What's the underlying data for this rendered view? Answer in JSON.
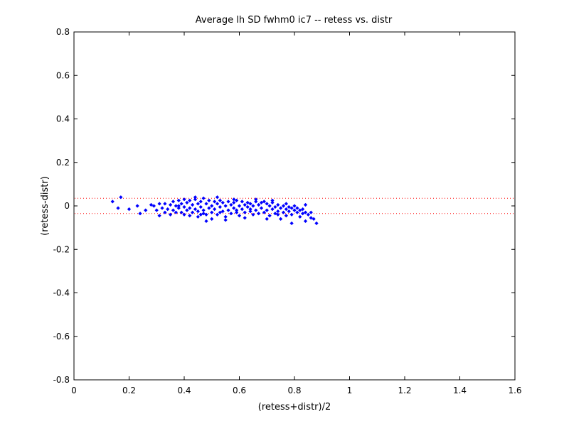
{
  "chart_data": {
    "type": "scatter",
    "title": "Average lh SD fwhm0 ic7 -- retess vs. distr",
    "xlabel": "(retess+distr)/2",
    "ylabel": "(retess-distr)",
    "xlim": [
      0,
      1.6
    ],
    "ylim": [
      -0.8,
      0.8
    ],
    "xticks": [
      0,
      0.2,
      0.4,
      0.6,
      0.8,
      1,
      1.2,
      1.4,
      1.6
    ],
    "xtick_labels": [
      "0",
      "0.2",
      "0.4",
      "0.6",
      "0.8",
      "1",
      "1.2",
      "1.4",
      "1.6"
    ],
    "yticks": [
      -0.8,
      -0.6,
      -0.4,
      -0.2,
      0,
      0.2,
      0.4,
      0.6,
      0.8
    ],
    "ytick_labels": [
      "-0.8",
      "-0.6",
      "-0.4",
      "-0.2",
      "0",
      "0.2",
      "0.4",
      "0.6",
      "0.8"
    ],
    "grid": false,
    "marker_color": "#0000ff",
    "reference_line_color": "#ff0000",
    "reference_lines": [
      0.035,
      -0.035
    ],
    "reference_line_style": "dotted",
    "series": [
      {
        "points": [
          [
            0.14,
            0.02
          ],
          [
            0.17,
            0.04
          ],
          [
            0.16,
            -0.01
          ],
          [
            0.2,
            -0.015
          ],
          [
            0.23,
            0.0
          ],
          [
            0.24,
            -0.035
          ],
          [
            0.26,
            -0.02
          ],
          [
            0.28,
            0.005
          ],
          [
            0.29,
            0.0
          ],
          [
            0.3,
            -0.02
          ],
          [
            0.31,
            0.01
          ],
          [
            0.31,
            -0.045
          ],
          [
            0.32,
            -0.01
          ],
          [
            0.33,
            0.01
          ],
          [
            0.33,
            -0.03
          ],
          [
            0.34,
            -0.015
          ],
          [
            0.35,
            0.005
          ],
          [
            0.35,
            -0.04
          ],
          [
            0.36,
            0.02
          ],
          [
            0.36,
            -0.02
          ],
          [
            0.37,
            0.0
          ],
          [
            0.37,
            -0.03
          ],
          [
            0.38,
            0.025
          ],
          [
            0.38,
            -0.01
          ],
          [
            0.39,
            0.01
          ],
          [
            0.39,
            -0.03
          ],
          [
            0.4,
            0.03
          ],
          [
            0.4,
            -0.005
          ],
          [
            0.4,
            -0.04
          ],
          [
            0.41,
            0.015
          ],
          [
            0.41,
            -0.02
          ],
          [
            0.42,
            0.025
          ],
          [
            0.42,
            -0.01
          ],
          [
            0.42,
            -0.045
          ],
          [
            0.43,
            0.005
          ],
          [
            0.43,
            -0.03
          ],
          [
            0.44,
            0.03
          ],
          [
            0.44,
            -0.015
          ],
          [
            0.45,
            0.01
          ],
          [
            0.45,
            -0.05
          ],
          [
            0.45,
            -0.025
          ],
          [
            0.46,
            0.02
          ],
          [
            0.46,
            -0.005
          ],
          [
            0.47,
            0.035
          ],
          [
            0.47,
            -0.035
          ],
          [
            0.47,
            -0.02
          ],
          [
            0.48,
            0.01
          ],
          [
            0.48,
            -0.04
          ],
          [
            0.49,
            0.025
          ],
          [
            0.49,
            -0.01
          ],
          [
            0.5,
            0.0
          ],
          [
            0.5,
            -0.03
          ],
          [
            0.5,
            -0.06
          ],
          [
            0.51,
            0.02
          ],
          [
            0.51,
            -0.015
          ],
          [
            0.52,
            0.01
          ],
          [
            0.52,
            -0.04
          ],
          [
            0.53,
            0.025
          ],
          [
            0.53,
            -0.005
          ],
          [
            0.54,
            -0.025
          ],
          [
            0.54,
            0.015
          ],
          [
            0.55,
            0.0
          ],
          [
            0.55,
            -0.05
          ],
          [
            0.56,
            0.02
          ],
          [
            0.56,
            -0.02
          ],
          [
            0.57,
            0.005
          ],
          [
            0.57,
            -0.035
          ],
          [
            0.58,
            0.015
          ],
          [
            0.58,
            -0.01
          ],
          [
            0.59,
            0.025
          ],
          [
            0.59,
            -0.03
          ],
          [
            0.6,
            0.0
          ],
          [
            0.6,
            -0.045
          ],
          [
            0.61,
            0.02
          ],
          [
            0.61,
            -0.015
          ],
          [
            0.62,
            0.005
          ],
          [
            0.62,
            -0.03
          ],
          [
            0.63,
            0.015
          ],
          [
            0.63,
            -0.005
          ],
          [
            0.64,
            -0.025
          ],
          [
            0.64,
            0.01
          ],
          [
            0.65,
            0.0
          ],
          [
            0.65,
            -0.04
          ],
          [
            0.66,
            0.02
          ],
          [
            0.66,
            -0.02
          ],
          [
            0.67,
            0.005
          ],
          [
            0.67,
            -0.035
          ],
          [
            0.68,
            0.015
          ],
          [
            0.68,
            -0.01
          ],
          [
            0.69,
            -0.03
          ],
          [
            0.7,
            0.01
          ],
          [
            0.7,
            -0.02
          ],
          [
            0.71,
            0.0
          ],
          [
            0.71,
            -0.045
          ],
          [
            0.72,
            0.015
          ],
          [
            0.72,
            -0.015
          ],
          [
            0.73,
            -0.005
          ],
          [
            0.73,
            -0.035
          ],
          [
            0.74,
            0.005
          ],
          [
            0.74,
            -0.025
          ],
          [
            0.75,
            -0.01
          ],
          [
            0.75,
            -0.06
          ],
          [
            0.76,
            0.0
          ],
          [
            0.76,
            -0.03
          ],
          [
            0.77,
            -0.015
          ],
          [
            0.77,
            -0.045
          ],
          [
            0.78,
            -0.005
          ],
          [
            0.78,
            -0.025
          ],
          [
            0.79,
            -0.01
          ],
          [
            0.79,
            -0.04
          ],
          [
            0.8,
            -0.02
          ],
          [
            0.8,
            0.0
          ],
          [
            0.81,
            -0.03
          ],
          [
            0.81,
            -0.01
          ],
          [
            0.82,
            -0.05
          ],
          [
            0.82,
            -0.02
          ],
          [
            0.83,
            -0.015
          ],
          [
            0.83,
            -0.035
          ],
          [
            0.84,
            0.005
          ],
          [
            0.84,
            -0.03
          ],
          [
            0.85,
            -0.04
          ],
          [
            0.86,
            -0.055
          ],
          [
            0.86,
            -0.03
          ],
          [
            0.87,
            -0.06
          ],
          [
            0.88,
            -0.08
          ],
          [
            0.84,
            -0.07
          ],
          [
            0.79,
            -0.08
          ],
          [
            0.7,
            -0.06
          ],
          [
            0.62,
            -0.055
          ],
          [
            0.55,
            -0.065
          ],
          [
            0.48,
            -0.07
          ],
          [
            0.38,
            0.0
          ],
          [
            0.44,
            0.04
          ],
          [
            0.52,
            0.04
          ],
          [
            0.58,
            0.03
          ],
          [
            0.66,
            0.03
          ],
          [
            0.72,
            0.025
          ],
          [
            0.77,
            0.01
          ],
          [
            0.46,
            -0.04
          ],
          [
            0.53,
            -0.03
          ],
          [
            0.59,
            -0.02
          ],
          [
            0.64,
            -0.015
          ],
          [
            0.69,
            0.02
          ],
          [
            0.74,
            -0.04
          ]
        ]
      }
    ]
  }
}
